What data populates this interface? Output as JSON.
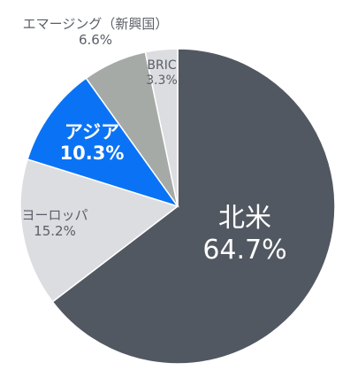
{
  "chart_data": {
    "type": "pie",
    "title": "",
    "slices": [
      {
        "label": "北米",
        "value": 64.7,
        "display": "64.7%",
        "color": "#525861",
        "text_color": "#ffffff"
      },
      {
        "label": "ヨーロッパ",
        "value": 15.2,
        "display": "15.2%",
        "color": "#dcdde0",
        "text_color": "#5a5e66"
      },
      {
        "label": "アジア",
        "value": 10.3,
        "display": "10.3%",
        "color": "#0a73f5",
        "text_color": "#ffffff"
      },
      {
        "label": "エマージング（新興国）",
        "value": 6.6,
        "display": "6.6%",
        "color": "#a6aaa7",
        "text_color": "#5a5e66"
      },
      {
        "label": "BRIC",
        "value": 3.3,
        "display": "3.3%",
        "color": "#dcdde0",
        "text_color": "#5a5e66"
      }
    ],
    "start_angle_deg": 0,
    "direction": "clockwise"
  }
}
